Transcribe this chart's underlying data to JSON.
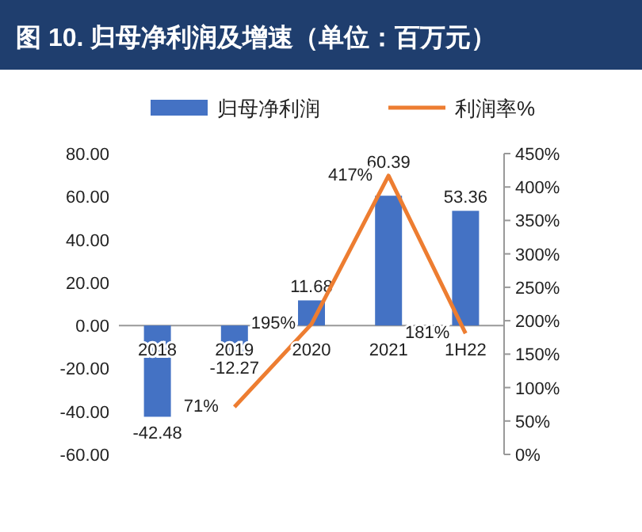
{
  "chart_data": {
    "type": "bar",
    "title": "图 10. 归母净利润及增速（单位：百万元）",
    "categories": [
      "2018",
      "2019",
      "2020",
      "2021",
      "1H22"
    ],
    "series": [
      {
        "name": "归母净利润",
        "type": "bar",
        "color": "#4472c4",
        "values": [
          -42.48,
          -12.27,
          11.68,
          60.39,
          53.36
        ],
        "value_labels": [
          "-42.48",
          "-12.27",
          "11.68",
          "60.39",
          "53.36"
        ]
      },
      {
        "name": "利润率%",
        "type": "line",
        "axis": "y2",
        "color": "#ed7d31",
        "values": [
          null,
          71,
          195,
          417,
          181
        ],
        "value_labels": [
          null,
          "71%",
          "195%",
          "417%",
          "181%"
        ]
      }
    ],
    "ylim": [
      -60,
      80
    ],
    "yticks": [
      {
        "value": -60,
        "label": "-60.00"
      },
      {
        "value": -40,
        "label": "-40.00"
      },
      {
        "value": -20,
        "label": "-20.00"
      },
      {
        "value": 0,
        "label": "0.00"
      },
      {
        "value": 20,
        "label": "20.00"
      },
      {
        "value": 40,
        "label": "40.00"
      },
      {
        "value": 60,
        "label": "60.00"
      },
      {
        "value": 80,
        "label": "80.00"
      }
    ],
    "y2lim": [
      0,
      450
    ],
    "y2ticks": [
      {
        "value": 0,
        "label": "0%"
      },
      {
        "value": 50,
        "label": "50%"
      },
      {
        "value": 100,
        "label": "100%"
      },
      {
        "value": 150,
        "label": "150%"
      },
      {
        "value": 200,
        "label": "200%"
      },
      {
        "value": 250,
        "label": "250%"
      },
      {
        "value": 300,
        "label": "300%"
      },
      {
        "value": 350,
        "label": "350%"
      },
      {
        "value": 400,
        "label": "400%"
      },
      {
        "value": 450,
        "label": "450%"
      }
    ],
    "legend": "top",
    "grid": false
  }
}
